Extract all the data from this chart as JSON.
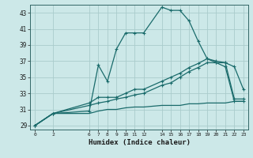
{
  "xlabel": "Humidex (Indice chaleur)",
  "bg_color": "#cce8e8",
  "grid_color": "#aacccc",
  "line_color": "#1a6b6b",
  "x_ticks": [
    0,
    2,
    6,
    7,
    8,
    9,
    10,
    11,
    12,
    14,
    15,
    16,
    17,
    18,
    19,
    20,
    21,
    22,
    23
  ],
  "ylim": [
    28.5,
    44.0
  ],
  "xlim": [
    -0.5,
    23.5
  ],
  "yticks": [
    29,
    31,
    33,
    35,
    37,
    39,
    41,
    43
  ],
  "series1_x": [
    0,
    2,
    6,
    7,
    8,
    9,
    10,
    11,
    12,
    14,
    15,
    16,
    17,
    18,
    19,
    20,
    21,
    22,
    23
  ],
  "series1_y": [
    29,
    30.5,
    30.8,
    36.5,
    34.5,
    38.5,
    40.5,
    40.5,
    40.5,
    43.7,
    43.3,
    43.3,
    42.0,
    39.5,
    37.3,
    36.8,
    36.8,
    36.3,
    33.5
  ],
  "series2_x": [
    0,
    2,
    6,
    7,
    8,
    9,
    10,
    11,
    12,
    14,
    15,
    16,
    17,
    18,
    19,
    20,
    21,
    22,
    23
  ],
  "series2_y": [
    29,
    30.5,
    31.8,
    32.5,
    32.5,
    32.5,
    33.0,
    33.5,
    33.5,
    34.5,
    35.0,
    35.5,
    36.2,
    36.7,
    37.3,
    37.0,
    36.8,
    32.3,
    32.3
  ],
  "series3_x": [
    0,
    2,
    6,
    7,
    8,
    9,
    10,
    11,
    12,
    14,
    15,
    16,
    17,
    18,
    19,
    20,
    21,
    22,
    23
  ],
  "series3_y": [
    29,
    30.5,
    31.5,
    31.8,
    32.0,
    32.3,
    32.5,
    32.8,
    33.0,
    34.0,
    34.3,
    35.0,
    35.7,
    36.2,
    36.8,
    36.8,
    36.3,
    32.0,
    32.0
  ],
  "series4_x": [
    0,
    2,
    6,
    7,
    8,
    9,
    10,
    11,
    12,
    14,
    15,
    16,
    17,
    18,
    19,
    20,
    21,
    22,
    23
  ],
  "series4_y": [
    29,
    30.5,
    30.5,
    30.8,
    31.0,
    31.0,
    31.2,
    31.3,
    31.3,
    31.5,
    31.5,
    31.5,
    31.7,
    31.7,
    31.8,
    31.8,
    31.8,
    32.0,
    32.0
  ]
}
